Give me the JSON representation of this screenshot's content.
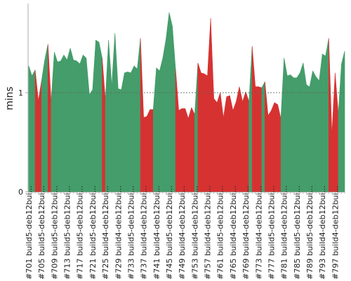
{
  "chart_data": {
    "type": "area",
    "ylabel": "mins",
    "xlabel": "",
    "title": "",
    "ylim": [
      0,
      1.9
    ],
    "yticks": [
      0,
      1
    ],
    "reference_line": 1,
    "colors": {
      "green": "#449d6a",
      "red": "#d63232",
      "axis": "#aaaaaa",
      "grid": "#666666"
    },
    "x_labels": [
      "#701 build5-deb12bui...",
      "#705 build5-deb12bui...",
      "#709 build5-deb12bui...",
      "#713 build5-deb12bui...",
      "#717 build5-deb12bui...",
      "#721 build5-deb12bui...",
      "#725 build4-deb12bui...",
      "#729 build4-deb12bui...",
      "#733 build5-deb12bui...",
      "#737 build4-deb12bui...",
      "#741 build4-deb12bui...",
      "#745 build5-deb12bui...",
      "#749 build4-deb12bui...",
      "#753 build4-deb12bui...",
      "#757 build4-deb12bui...",
      "#761 build5-deb12bui...",
      "#765 build4-deb12bui...",
      "#769 build4-deb12bui...",
      "#773 build4-deb12bui...",
      "#777 build5-deb12bui...",
      "#781 build4-deb12bui...",
      "#785 build5-deb12bui...",
      "#789 build5-deb12bui...",
      "#793 build4-deb12bui...",
      "#797 build4-deb12bui..."
    ],
    "x_start": 701,
    "values": [
      1.27,
      1.17,
      1.23,
      0.92,
      1.12,
      1.33,
      1.49,
      0.91,
      1.41,
      1.31,
      1.32,
      1.38,
      1.33,
      1.45,
      1.33,
      1.32,
      1.29,
      1.38,
      1.35,
      0.98,
      1.03,
      1.53,
      1.51,
      1.35,
      0.93,
      1.53,
      1.07,
      1.6,
      1.04,
      1.03,
      1.2,
      1.21,
      1.2,
      1.27,
      1.24,
      1.55,
      0.75,
      0.76,
      0.83,
      0.83,
      1.25,
      1.22,
      1.35,
      1.54,
      1.81,
      1.67,
      1.24,
      0.82,
      0.84,
      0.84,
      0.74,
      0.85,
      0.78,
      1.3,
      1.2,
      1.19,
      1.17,
      1.75,
      0.94,
      0.9,
      1.0,
      0.75,
      0.96,
      0.97,
      0.82,
      0.91,
      1.06,
      0.91,
      1.01,
      0.91,
      1.47,
      1.06,
      1.06,
      1.05,
      1.11,
      0.77,
      0.82,
      0.9,
      0.88,
      0.74,
      1.35,
      1.17,
      1.18,
      1.15,
      1.15,
      1.2,
      1.3,
      1.08,
      1.06,
      1.22,
      1.16,
      1.12,
      1.39,
      1.37,
      1.55,
      0.58,
      1.2,
      0.79,
      1.29,
      1.42
    ],
    "status": [
      "green",
      "green",
      "green",
      "red",
      "red",
      "green",
      "green",
      "red",
      "green",
      "green",
      "green",
      "green",
      "green",
      "green",
      "green",
      "green",
      "green",
      "green",
      "green",
      "green",
      "green",
      "green",
      "green",
      "green",
      "red",
      "green",
      "green",
      "green",
      "green",
      "green",
      "green",
      "green",
      "green",
      "green",
      "green",
      "green",
      "red",
      "red",
      "red",
      "red",
      "green",
      "green",
      "green",
      "green",
      "green",
      "green",
      "green",
      "red",
      "red",
      "red",
      "red",
      "red",
      "red",
      "green",
      "red",
      "red",
      "red",
      "red",
      "red",
      "red",
      "red",
      "red",
      "red",
      "red",
      "red",
      "red",
      "red",
      "red",
      "red",
      "red",
      "green",
      "red",
      "red",
      "red",
      "green",
      "red",
      "red",
      "red",
      "red",
      "red",
      "green",
      "green",
      "green",
      "green",
      "green",
      "green",
      "green",
      "green",
      "green",
      "green",
      "green",
      "green",
      "green",
      "green",
      "green",
      "red",
      "red",
      "red",
      "green",
      "green"
    ]
  }
}
